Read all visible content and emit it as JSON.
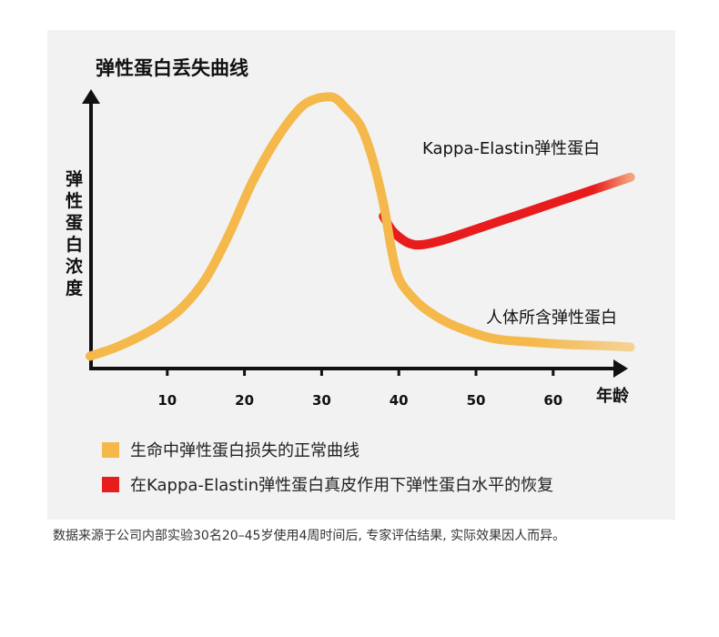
{
  "chart_data": {
    "type": "line",
    "title": "弹性蛋白丢失曲线",
    "ylabel": "弹性蛋白浓度",
    "xlabel": "年龄",
    "xlim": [
      0,
      70
    ],
    "x_ticks": [
      10,
      20,
      30,
      40,
      50,
      60
    ],
    "series": [
      {
        "name": "生命中弹性蛋白损失的正常曲线",
        "annotation": "人体所含弹性蛋白",
        "color": "#f5b84a",
        "x": [
          0,
          3,
          6,
          9,
          12,
          15,
          18,
          21,
          24,
          27,
          29,
          31,
          32,
          33,
          35,
          36.5,
          38,
          39,
          40,
          42,
          44,
          47,
          52,
          57,
          62,
          67,
          70
        ],
        "y": [
          0.03,
          0.06,
          0.1,
          0.15,
          0.22,
          0.33,
          0.5,
          0.7,
          0.86,
          0.98,
          1.02,
          1.03,
          1.02,
          0.99,
          0.92,
          0.8,
          0.62,
          0.45,
          0.33,
          0.25,
          0.2,
          0.15,
          0.1,
          0.085,
          0.075,
          0.07,
          0.065
        ]
      },
      {
        "name": "在Kappa-Elastin弹性蛋白真皮作用下弹性蛋白水平的恢复",
        "annotation": "Kappa-Elastin弹性蛋白",
        "color": "#e81c1c",
        "x": [
          38,
          39,
          40,
          41,
          42,
          43,
          44,
          46,
          50,
          55,
          60,
          65,
          70
        ],
        "y": [
          0.57,
          0.52,
          0.49,
          0.47,
          0.46,
          0.46,
          0.465,
          0.48,
          0.52,
          0.57,
          0.62,
          0.67,
          0.72
        ]
      }
    ]
  },
  "legend": [
    {
      "label": "生命中弹性蛋白损失的正常曲线",
      "color": "#f5b84a"
    },
    {
      "label": "在Kappa-Elastin弹性蛋白真皮作用下弹性蛋白水平的恢复",
      "color": "#e81c1c"
    }
  ],
  "footnote": "数据来源于公司内部实验30名20–45岁使用4周时间后, 专家评估结果, 实际效果因人而异。"
}
